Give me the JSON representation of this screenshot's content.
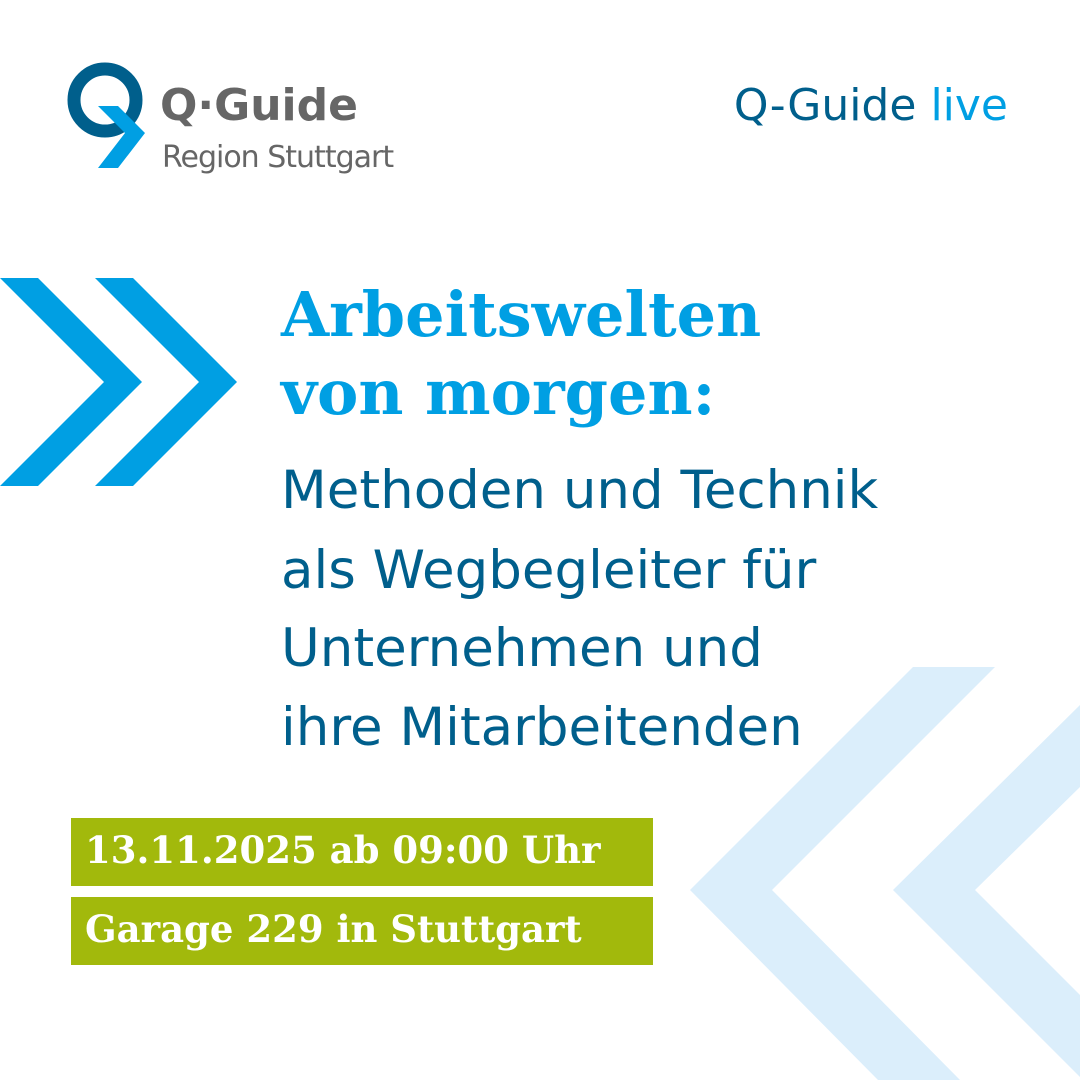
{
  "logo": {
    "title": "Q·Guide",
    "subtitle": "Region Stuttgart"
  },
  "series_label": {
    "prefix": "Q-Guide",
    "accent": "live"
  },
  "headline": [
    "Arbeitswelten",
    "von morgen:"
  ],
  "subheadline": [
    "Methoden und Technik",
    "als Wegbegleiter für",
    "Unternehmen und",
    "ihre Mitarbeitenden"
  ],
  "event": {
    "date": "13.11.2025 ab 09:00 Uhr",
    "location": "Garage 229 in Stuttgart"
  },
  "colors": {
    "dark_blue": "#005f8c",
    "light_blue": "#009fe3",
    "green": "#a2b90c",
    "pale_blue": "#dbeefb",
    "gray": "#666666"
  },
  "icons": [
    "chevron-right-icon",
    "chevron-left-icon",
    "q-guide-logo-icon"
  ]
}
